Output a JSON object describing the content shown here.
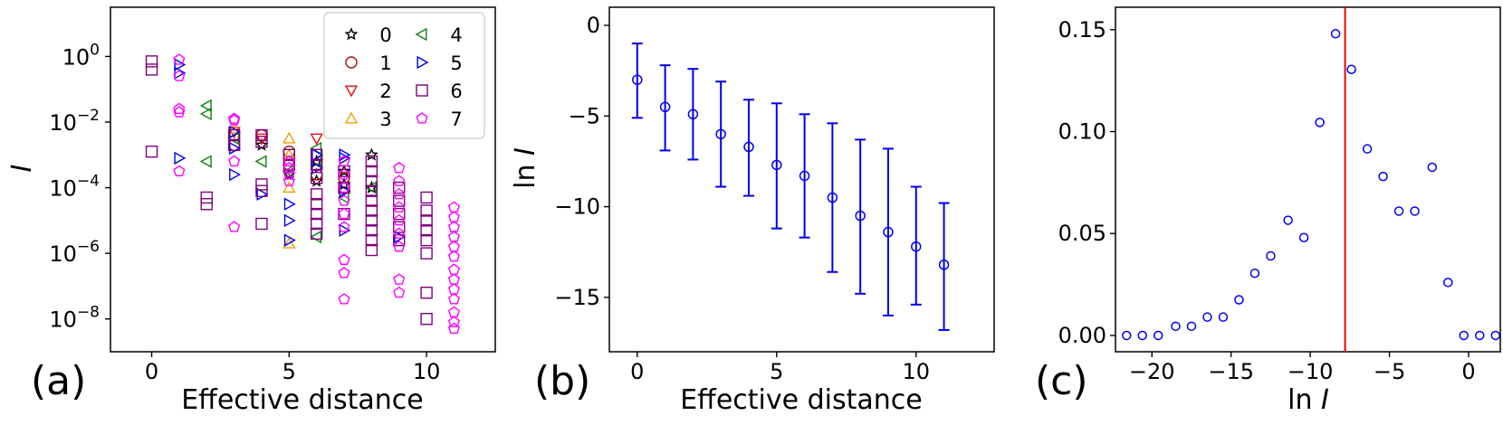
{
  "chart_data": [
    {
      "panel_label": "(a)",
      "type": "scatter",
      "xlabel": "Effective distance",
      "ylabel": "I",
      "yscale": "log",
      "xlim": [
        -1.5,
        12.5
      ],
      "ylim_exp": [
        -9.0,
        1.5
      ],
      "x_ticks": [
        0,
        5,
        10
      ],
      "y_ticks": [
        {
          "base": "10",
          "exp": "0",
          "value": 0
        },
        {
          "base": "10",
          "exp": "−2",
          "value": -2
        },
        {
          "base": "10",
          "exp": "−4",
          "value": -4
        },
        {
          "base": "10",
          "exp": "−6",
          "value": -6
        },
        {
          "base": "10",
          "exp": "−8",
          "value": -8
        }
      ],
      "legend": {
        "position": "upper right",
        "entries": [
          {
            "label": "0",
            "marker": "star",
            "color": "#000000"
          },
          {
            "label": "1",
            "marker": "circle",
            "color": "#a01010"
          },
          {
            "label": "2",
            "marker": "triangle-down",
            "color": "#e01010"
          },
          {
            "label": "3",
            "marker": "triangle-up",
            "color": "#f0a000"
          },
          {
            "label": "4",
            "marker": "triangle-left",
            "color": "#108010"
          },
          {
            "label": "5",
            "marker": "triangle-right",
            "color": "#0000ee"
          },
          {
            "label": "6",
            "marker": "square",
            "color": "#800080"
          },
          {
            "label": "7",
            "marker": "pentagon",
            "color": "#ff00ff"
          }
        ]
      },
      "series": [
        {
          "legend_label": "0",
          "points": [
            [
              4,
              -2.7
            ],
            [
              5,
              -3.6
            ],
            [
              6,
              -3.8
            ],
            [
              6,
              -3.2
            ],
            [
              7,
              -3.9
            ],
            [
              7,
              -3.5
            ],
            [
              8,
              -3.0
            ],
            [
              8,
              -4.0
            ]
          ]
        },
        {
          "legend_label": "1",
          "points": [
            [
              3,
              -2.7
            ],
            [
              4,
              -2.4
            ],
            [
              5,
              -2.9
            ],
            [
              5,
              -3.3
            ],
            [
              6,
              -3.6
            ],
            [
              7,
              -3.7
            ]
          ]
        },
        {
          "legend_label": "2",
          "points": [
            [
              3,
              -2.3
            ],
            [
              4,
              -2.5
            ],
            [
              6,
              -2.5
            ]
          ]
        },
        {
          "legend_label": "3",
          "points": [
            [
              3,
              -2.2
            ],
            [
              5,
              -2.5
            ],
            [
              5,
              -3.0
            ],
            [
              5,
              -4.0
            ],
            [
              5,
              -5.7
            ]
          ]
        },
        {
          "legend_label": "4",
          "points": [
            [
              2,
              -1.5
            ],
            [
              2,
              -1.75
            ],
            [
              2,
              -3.2
            ],
            [
              3,
              -2.5
            ],
            [
              4,
              -3.2
            ],
            [
              5,
              -3.5
            ],
            [
              6,
              -2.8
            ],
            [
              6,
              -3.2
            ],
            [
              6,
              -5.5
            ],
            [
              7,
              -4.3
            ],
            [
              8,
              -4.0
            ]
          ]
        },
        {
          "legend_label": "5",
          "points": [
            [
              1,
              -0.25
            ],
            [
              1,
              -0.5
            ],
            [
              1,
              -3.1
            ],
            [
              3,
              -2.3
            ],
            [
              3,
              -2.8
            ],
            [
              3,
              -3.6
            ],
            [
              4,
              -4.2
            ],
            [
              5,
              -4.5
            ],
            [
              5,
              -5.0
            ],
            [
              5,
              -5.6
            ],
            [
              6,
              -3.0
            ],
            [
              6,
              -3.4
            ],
            [
              7,
              -3.0
            ],
            [
              7,
              -3.1
            ],
            [
              7,
              -4.1
            ],
            [
              7,
              -5.3
            ],
            [
              9,
              -5.5
            ]
          ]
        },
        {
          "legend_label": "6",
          "points": [
            [
              0,
              -0.15
            ],
            [
              0,
              -0.4
            ],
            [
              0,
              -2.9
            ],
            [
              2,
              -4.3
            ],
            [
              2,
              -4.5
            ],
            [
              3,
              -2.4
            ],
            [
              3,
              -2.7
            ],
            [
              4,
              -2.4
            ],
            [
              4,
              -2.6
            ],
            [
              4,
              -3.9
            ],
            [
              4,
              -4.1
            ],
            [
              4,
              -5.1
            ],
            [
              5,
              -3.0
            ],
            [
              5,
              -3.3
            ],
            [
              6,
              -3.0
            ],
            [
              6,
              -3.3
            ],
            [
              6,
              -3.7
            ],
            [
              6,
              -4.2
            ],
            [
              6,
              -4.5
            ],
            [
              6,
              -4.8
            ],
            [
              6,
              -5.1
            ],
            [
              6,
              -5.4
            ],
            [
              7,
              -3.5
            ],
            [
              7,
              -4.0
            ],
            [
              7,
              -4.8
            ],
            [
              8,
              -3.2
            ],
            [
              8,
              -3.5
            ],
            [
              8,
              -3.8
            ],
            [
              8,
              -4.1
            ],
            [
              8,
              -4.4
            ],
            [
              8,
              -4.7
            ],
            [
              8,
              -5.0
            ],
            [
              8,
              -5.3
            ],
            [
              8,
              -5.6
            ],
            [
              8,
              -5.9
            ],
            [
              9,
              -4.0
            ],
            [
              9,
              -4.4
            ],
            [
              9,
              -4.8
            ],
            [
              9,
              -5.2
            ],
            [
              9,
              -5.6
            ],
            [
              10,
              -4.3
            ],
            [
              10,
              -4.7
            ],
            [
              10,
              -5.0
            ],
            [
              10,
              -5.3
            ],
            [
              10,
              -5.6
            ],
            [
              10,
              -6.0
            ],
            [
              10,
              -7.2
            ],
            [
              10,
              -8.0
            ]
          ]
        },
        {
          "legend_label": "7",
          "points": [
            [
              1,
              -0.1
            ],
            [
              1,
              -0.6
            ],
            [
              1,
              -1.6
            ],
            [
              1,
              -1.7
            ],
            [
              1,
              -3.5
            ],
            [
              3,
              -1.9
            ],
            [
              3,
              -1.95
            ],
            [
              3,
              -3.2
            ],
            [
              3,
              -5.2
            ],
            [
              5,
              -3.2
            ],
            [
              5,
              -3.4
            ],
            [
              5,
              -3.6
            ],
            [
              5,
              -3.8
            ],
            [
              7,
              -3.2
            ],
            [
              7,
              -3.6
            ],
            [
              7,
              -4.0
            ],
            [
              7,
              -4.4
            ],
            [
              7,
              -4.8
            ],
            [
              7,
              -5.2
            ],
            [
              7,
              -6.2
            ],
            [
              7,
              -6.6
            ],
            [
              7,
              -7.4
            ],
            [
              9,
              -3.4
            ],
            [
              9,
              -3.8
            ],
            [
              9,
              -4.2
            ],
            [
              9,
              -4.6
            ],
            [
              9,
              -5.0
            ],
            [
              9,
              -5.4
            ],
            [
              9,
              -5.8
            ],
            [
              9,
              -6.8
            ],
            [
              9,
              -7.2
            ],
            [
              11,
              -4.6
            ],
            [
              11,
              -4.9
            ],
            [
              11,
              -5.2
            ],
            [
              11,
              -5.5
            ],
            [
              11,
              -5.8
            ],
            [
              11,
              -6.1
            ],
            [
              11,
              -6.5
            ],
            [
              11,
              -6.8
            ],
            [
              11,
              -7.1
            ],
            [
              11,
              -7.4
            ],
            [
              11,
              -7.8
            ],
            [
              11,
              -8.1
            ],
            [
              11,
              -8.3
            ]
          ]
        }
      ]
    },
    {
      "panel_label": "(b)",
      "type": "errorbar",
      "xlabel": "Effective distance",
      "ylabel": "ln I",
      "xlim": [
        -1.0,
        12.8
      ],
      "ylim": [
        -18.0,
        1.0
      ],
      "x_ticks": [
        0,
        5,
        10
      ],
      "y_ticks": [
        {
          "label": "0",
          "value": 0
        },
        {
          "label": "−5",
          "value": -5
        },
        {
          "label": "−10",
          "value": -10
        },
        {
          "label": "−15",
          "value": -15
        }
      ],
      "color": "#0000ee",
      "x": [
        0,
        1,
        2,
        3,
        4,
        5,
        6,
        7,
        8,
        9,
        10,
        11
      ],
      "mean": [
        -3.0,
        -4.5,
        -4.9,
        -6.0,
        -6.7,
        -7.7,
        -8.3,
        -9.5,
        -10.5,
        -11.4,
        -12.2,
        -13.2
      ],
      "err_low": [
        -5.1,
        -6.9,
        -7.4,
        -8.9,
        -9.4,
        -11.2,
        -11.7,
        -13.6,
        -14.8,
        -16.0,
        -15.4,
        -16.8
      ],
      "err_high": [
        -1.0,
        -2.2,
        -2.4,
        -3.1,
        -4.1,
        -4.3,
        -4.9,
        -5.4,
        -6.3,
        -6.8,
        -8.9,
        -9.8
      ]
    },
    {
      "panel_label": "(c)",
      "type": "scatter",
      "xlabel": "ln I",
      "ylabel": "",
      "xlim": [
        -22.3,
        2.0
      ],
      "ylim": [
        -0.008,
        0.161
      ],
      "x_ticks": [
        {
          "label": "−20",
          "value": -20
        },
        {
          "label": "−15",
          "value": -15
        },
        {
          "label": "−10",
          "value": -10
        },
        {
          "label": "−5",
          "value": -5
        },
        {
          "label": "0",
          "value": 0
        }
      ],
      "y_ticks": [
        {
          "label": "0.00",
          "value": 0.0
        },
        {
          "label": "0.05",
          "value": 0.05
        },
        {
          "label": "0.10",
          "value": 0.1
        },
        {
          "label": "0.15",
          "value": 0.15
        }
      ],
      "color": "#0000ee",
      "vline": {
        "x": -7.8,
        "color": "#ee0000"
      },
      "x": [
        -21.6,
        -20.6,
        -19.6,
        -18.5,
        -17.5,
        -16.5,
        -15.5,
        -14.5,
        -13.5,
        -12.5,
        -11.4,
        -10.4,
        -9.4,
        -8.4,
        -7.4,
        -6.4,
        -5.4,
        -4.4,
        -3.4,
        -2.3,
        -1.3,
        -0.3,
        0.7,
        1.7
      ],
      "y": [
        0.0,
        0.0,
        0.0,
        0.0045,
        0.0045,
        0.009,
        0.009,
        0.0175,
        0.0305,
        0.039,
        0.0565,
        0.048,
        0.1045,
        0.148,
        0.1305,
        0.0915,
        0.078,
        0.061,
        0.061,
        0.0825,
        0.026,
        0.0,
        0.0,
        0.0
      ]
    }
  ]
}
